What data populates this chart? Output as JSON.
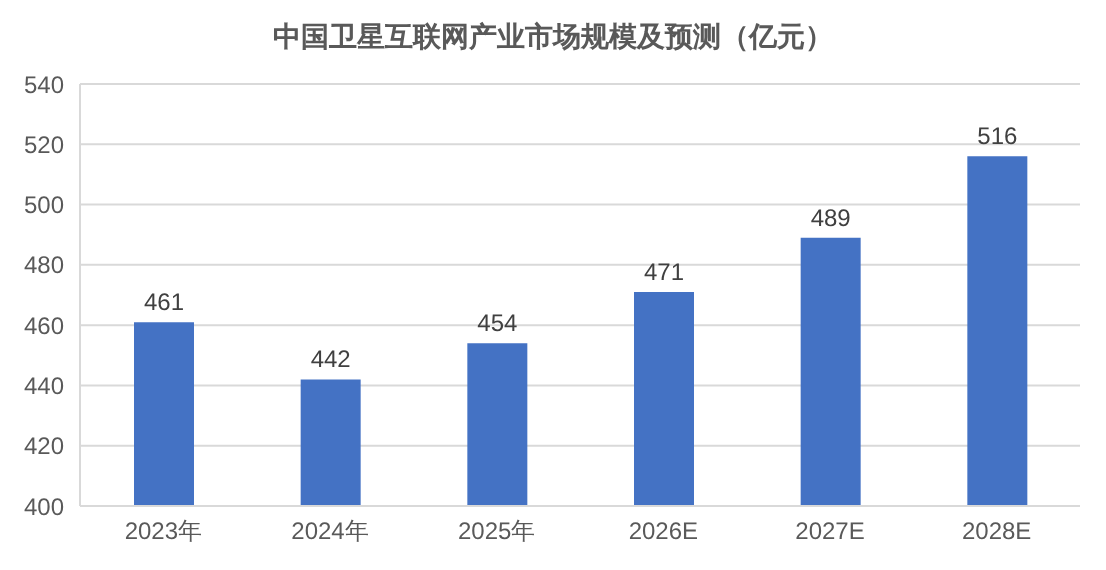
{
  "chart_data": {
    "type": "bar",
    "title": "中国卫星互联网产业市场规模及预测（亿元）",
    "categories": [
      "2023年",
      "2024年",
      "2025年",
      "2026E",
      "2027E",
      "2028E"
    ],
    "values": [
      461,
      442,
      454,
      471,
      489,
      516
    ],
    "color": "#4472c4",
    "ylim": [
      400,
      540
    ],
    "yticks": [
      400,
      420,
      440,
      460,
      480,
      500,
      520,
      540
    ],
    "grid": "y",
    "data_labels": true
  }
}
